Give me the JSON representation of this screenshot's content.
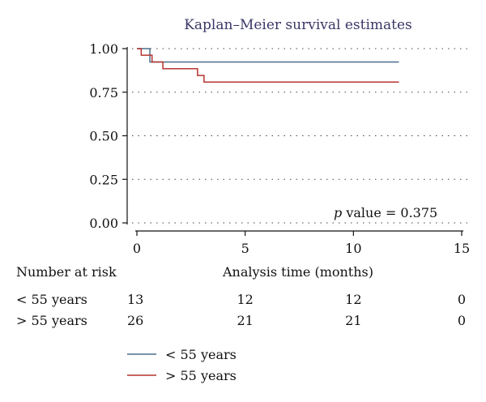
{
  "chart_data": {
    "type": "line",
    "title": "Kaplan–Meier survival estimates",
    "xlabel": "Analysis time (months)",
    "ylabel": "",
    "xlim": [
      0,
      15
    ],
    "ylim": [
      0,
      1
    ],
    "x_ticks": [
      "0",
      "5",
      "10",
      "15"
    ],
    "y_ticks": [
      "0.00",
      "0.25",
      "0.50",
      "0.75",
      "1.00"
    ],
    "grid": "horizontal dotted",
    "annotation": {
      "italic": "p",
      "text": " value = 0.375"
    },
    "legend_position": "bottom-left",
    "series": [
      {
        "name": "< 55 years",
        "color": "#4a6f8c",
        "steps": [
          [
            0,
            1.0
          ],
          [
            0.6,
            0.923
          ],
          [
            12.1,
            0.923
          ]
        ]
      },
      {
        "name": "> 55 years",
        "color": "#b5342f",
        "steps": [
          [
            0,
            1.0
          ],
          [
            0.2,
            0.962
          ],
          [
            0.7,
            0.923
          ],
          [
            1.2,
            0.885
          ],
          [
            2.8,
            0.846
          ],
          [
            3.1,
            0.808
          ],
          [
            12.1,
            0.808
          ]
        ]
      }
    ],
    "risk_table": {
      "header": "Number at risk",
      "time_points": [
        0,
        5,
        10,
        15
      ],
      "rows": [
        {
          "label": "< 55 years",
          "values": [
            "13",
            "12",
            "12",
            "0"
          ]
        },
        {
          "label": "> 55 years",
          "values": [
            "26",
            "21",
            "21",
            "0"
          ]
        }
      ]
    }
  }
}
